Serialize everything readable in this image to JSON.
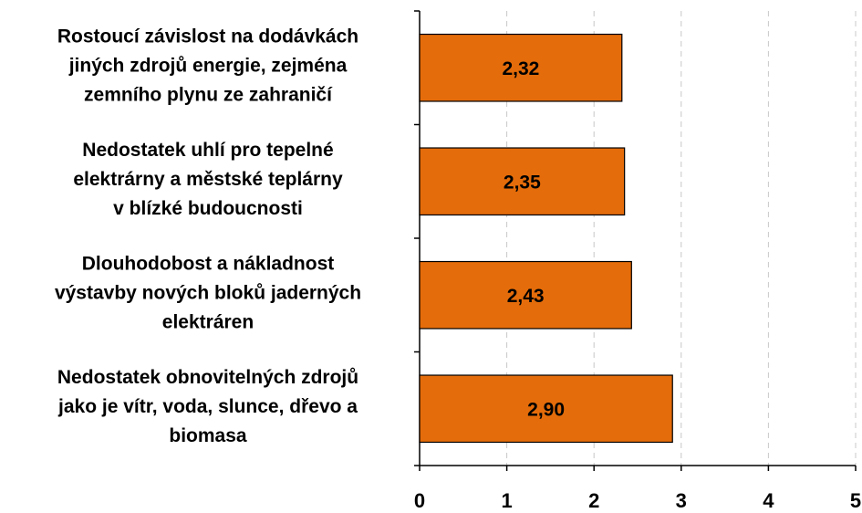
{
  "chart_data": {
    "type": "bar",
    "orientation": "horizontal",
    "categories": [
      [
        "Rostoucí závislost na dodávkách",
        "jiných zdrojů energie, zejména",
        "zemního plynu ze zahraničí"
      ],
      [
        "Nedostatek  uhlí pro tepelné",
        "elektrárny a městské teplárny",
        "v blízké budoucnosti"
      ],
      [
        "Dlouhodobost a nákladnost",
        "výstavby nových bloků jaderných",
        "elektráren"
      ],
      [
        "Nedostatek obnovitelných zdrojů",
        "jako je vítr, voda, slunce, dřevo a",
        "biomasa"
      ]
    ],
    "values": [
      2.32,
      2.35,
      2.43,
      2.9
    ],
    "value_labels": [
      "2,32",
      "2,35",
      "2,43",
      "2,90"
    ],
    "color": "#e46c0a",
    "xlim": [
      0,
      5
    ],
    "xticks": [
      0,
      1,
      2,
      3,
      4,
      5
    ],
    "grid": true
  }
}
